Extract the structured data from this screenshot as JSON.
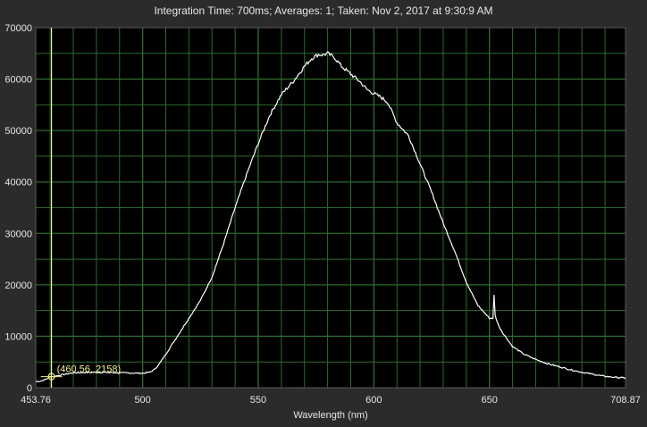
{
  "header": {
    "text": "Integration Time: 700ms;  Averages: 1;  Taken: Nov 2, 2017 at 9:30:9 AM"
  },
  "colors": {
    "background": "#2b2b2b",
    "plot_background": "#000000",
    "grid": "#2d6a2d",
    "series": "#ffffff",
    "cursor": "#f2f08a",
    "text": "#e6e6e6"
  },
  "cursor": {
    "x": 460.56,
    "y": 2158,
    "label": "(460.56, 2158)"
  },
  "chart_data": {
    "type": "line",
    "title": "",
    "xlabel": "Wavelength (nm)",
    "ylabel": "",
    "xlim": [
      453.76,
      708.87
    ],
    "ylim": [
      0,
      70000
    ],
    "x_tick_labels": [
      "453.76",
      "500",
      "550",
      "600",
      "650",
      "708.87"
    ],
    "x_tick_values": [
      453.76,
      500,
      550,
      600,
      650,
      708.87
    ],
    "y_tick_values": [
      0,
      10000,
      20000,
      30000,
      40000,
      50000,
      60000,
      70000
    ],
    "y_tick_labels": [
      "0",
      "10000",
      "20000",
      "30000",
      "40000",
      "50000",
      "60000",
      "70000"
    ],
    "x_minor_step": 10,
    "grid": true,
    "legend": "none",
    "series": [
      {
        "x": [
          453.76,
          456,
          458,
          460,
          470,
          480,
          490,
          500,
          503,
          505,
          507,
          510,
          515,
          520,
          525,
          530,
          535,
          540,
          545,
          550,
          555,
          560,
          565,
          570,
          573,
          576,
          578,
          580,
          583,
          586,
          590,
          594,
          597,
          600,
          603,
          606,
          610,
          615,
          620,
          625,
          630,
          635,
          640,
          645,
          648,
          650,
          651.5,
          652,
          652.5,
          654,
          656,
          660,
          665,
          670,
          675,
          680,
          685,
          690,
          695,
          700,
          705,
          708.87
        ],
        "y": [
          1200,
          1300,
          1600,
          2100,
          2900,
          3000,
          2900,
          2800,
          3000,
          3500,
          4500,
          6500,
          10000,
          13500,
          17000,
          21500,
          28000,
          35000,
          41500,
          47500,
          53000,
          57000,
          59500,
          62500,
          64000,
          64800,
          64700,
          65000,
          64200,
          62500,
          61000,
          59500,
          58000,
          57200,
          56500,
          55500,
          51500,
          49000,
          43500,
          38000,
          32000,
          26500,
          20500,
          16000,
          14500,
          13500,
          13500,
          18000,
          14000,
          12000,
          10500,
          8000,
          6500,
          5500,
          4700,
          4100,
          3500,
          3000,
          2600,
          2200,
          2000,
          1900
        ]
      }
    ]
  }
}
